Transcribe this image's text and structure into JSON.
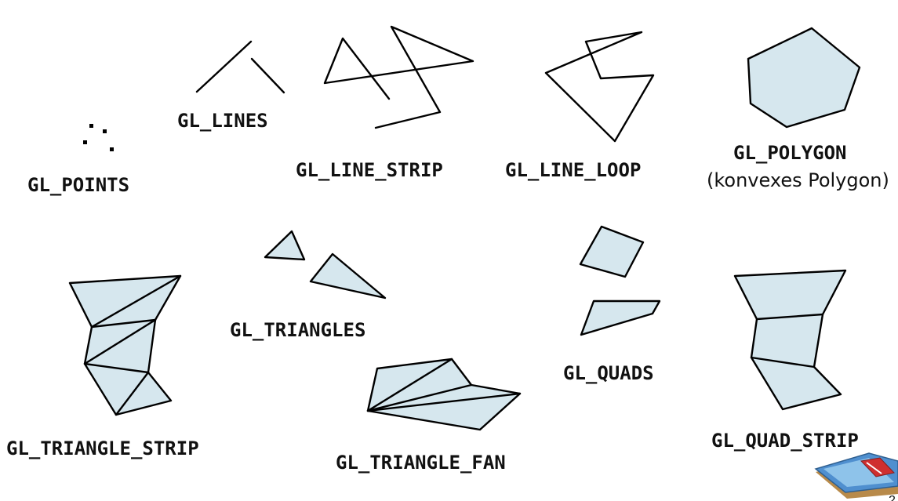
{
  "colors": {
    "fill": "#d6e7ee",
    "stroke": "#000000"
  },
  "labels": {
    "points": "GL_POINTS",
    "lines": "GL_LINES",
    "line_strip": "GL_LINE_STRIP",
    "line_loop": "GL_LINE_LOOP",
    "polygon": "GL_POLYGON",
    "polygon_note": "(konvexes Polygon)",
    "triangles": "GL_TRIANGLES",
    "triangle_strip": "GL_TRIANGLE_STRIP",
    "triangle_fan": "GL_TRIANGLE_FAN",
    "quads": "GL_QUADS",
    "quad_strip": "GL_QUAD_STRIP"
  },
  "page_number": "2",
  "logo_icon": "book-logo-icon"
}
